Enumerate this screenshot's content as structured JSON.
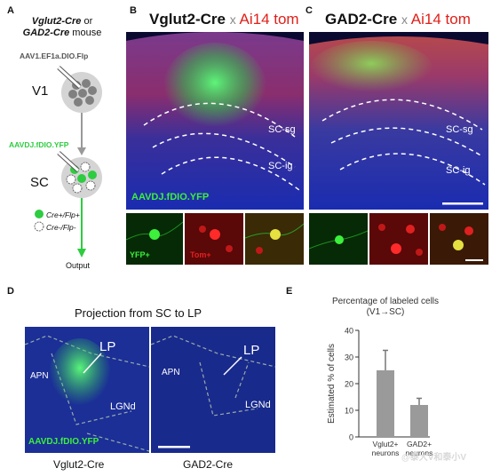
{
  "panelA": {
    "label": "A",
    "mouse_line1": "Vglut2-Cre",
    "mouse_or": "or",
    "mouse_line2": "GAD2-Cre",
    "mouse_suffix": "mouse",
    "virus1": "AAV1.EF1a.DIO.Flp",
    "region1": "V1",
    "virus2": "AAVDJ.fDIO.YFP",
    "region2": "SC",
    "legend_pos": "Cre+/Flp+",
    "legend_neg": "Cre-/Flp-",
    "output": "Output",
    "colors": {
      "green": "#2ecc40",
      "gray": "#999999"
    }
  },
  "panelB": {
    "label": "B",
    "title_cre": "Vglut2-Cre",
    "title_x": "x",
    "title_reporter": "Ai14 tom",
    "layer_sg": "SC-sg",
    "layer_ig": "SC-ig",
    "virus": "AAVDJ.fDIO.YFP",
    "inset_yfp": "YFP+",
    "inset_tom": "Tom+"
  },
  "panelC": {
    "label": "C",
    "title_cre": "GAD2-Cre",
    "title_x": "x",
    "title_reporter": "Ai14 tom",
    "layer_sg": "SC-sg",
    "layer_ig": "SC-ig"
  },
  "panelD": {
    "label": "D",
    "title": "Projection from SC to LP",
    "left": {
      "lp": "LP",
      "apn": "APN",
      "lgnd": "LGNd",
      "virus": "AAVDJ.fDIO.YFP",
      "caption": "Vglut2-Cre"
    },
    "right": {
      "lp": "LP",
      "apn": "APN",
      "lgnd": "LGNd",
      "caption": "GAD2-Cre"
    }
  },
  "panelE": {
    "label": "E",
    "title_line1": "Percentage of labeled cells",
    "title_line2": "(V1→SC)"
  },
  "chart_data": {
    "type": "bar",
    "title": "Percentage of labeled cells (V1→SC)",
    "categories": [
      "Vglut2+ neurons",
      "GAD2+ neurons"
    ],
    "values": [
      25,
      12
    ],
    "errors": [
      7.5,
      2.5
    ],
    "ylabel": "Estimated % of cells",
    "ylim": [
      0,
      40
    ],
    "yticks": [
      0,
      10,
      20,
      30,
      40
    ],
    "colors": {
      "bar": "#9a9a9a",
      "error": "#777777"
    }
  },
  "watermark": "@泰大V和泰小V"
}
